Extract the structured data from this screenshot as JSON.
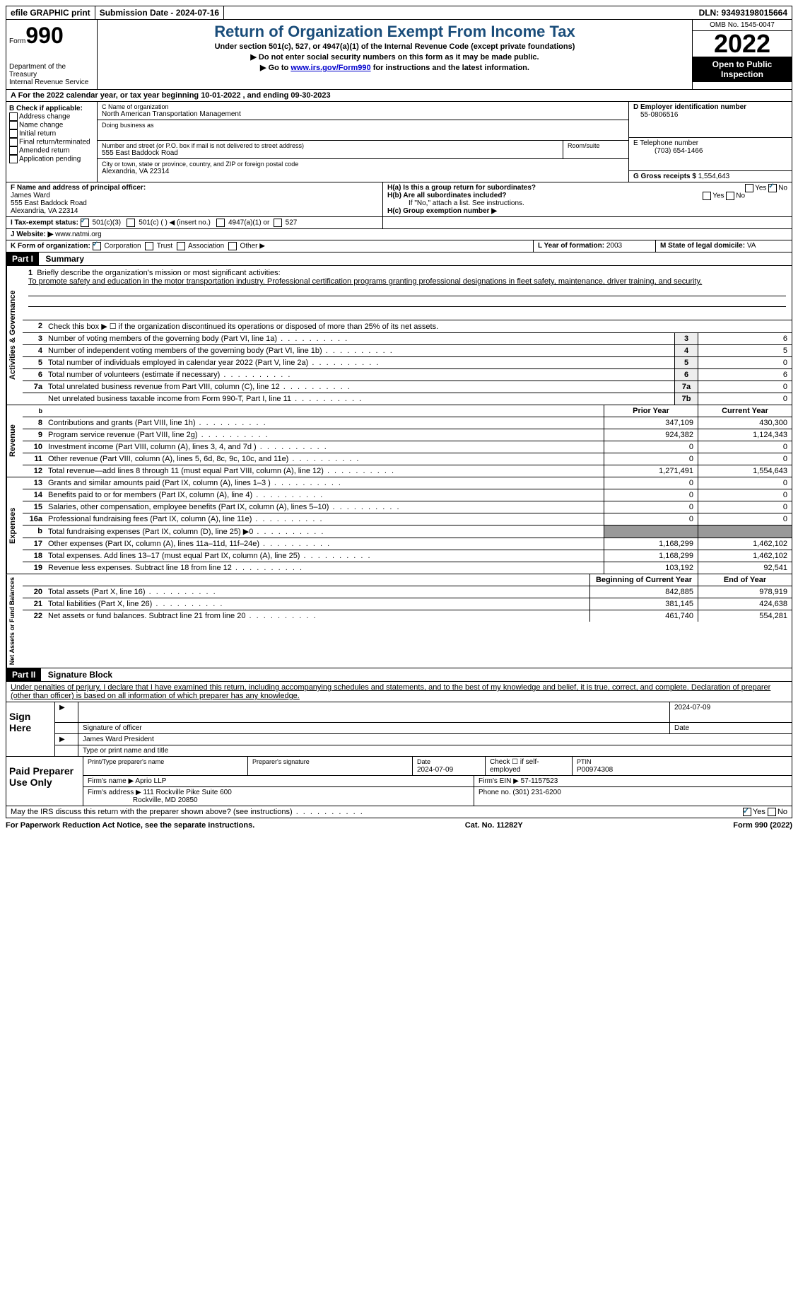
{
  "topbar": {
    "efile": "efile GRAPHIC print",
    "submission": "Submission Date - 2024-07-16",
    "dln": "DLN: 93493198015664"
  },
  "header": {
    "form_word": "Form",
    "form_num": "990",
    "dept": "Department of the Treasury",
    "irs": "Internal Revenue Service",
    "title": "Return of Organization Exempt From Income Tax",
    "sub1": "Under section 501(c), 527, or 4947(a)(1) of the Internal Revenue Code (except private foundations)",
    "sub2": "▶ Do not enter social security numbers on this form as it may be made public.",
    "sub3_pre": "▶ Go to ",
    "sub3_link": "www.irs.gov/Form990",
    "sub3_post": " for instructions and the latest information.",
    "omb": "OMB No. 1545-0047",
    "year": "2022",
    "inspection": "Open to Public Inspection"
  },
  "calyear": "A For the 2022 calendar year, or tax year beginning 10-01-2022    , and ending 09-30-2023",
  "sectionB": {
    "label": "B Check if applicable:",
    "items": [
      "Address change",
      "Name change",
      "Initial return",
      "Final return/terminated",
      "Amended return",
      "Application pending"
    ]
  },
  "sectionC": {
    "name_label": "C Name of organization",
    "name": "North American Transportation Management",
    "dba_label": "Doing business as",
    "addr_label": "Number and street (or P.O. box if mail is not delivered to street address)",
    "room_label": "Room/suite",
    "addr": "555 East Baddock Road",
    "city_label": "City or town, state or province, country, and ZIP or foreign postal code",
    "city": "Alexandria, VA  22314"
  },
  "sectionD": {
    "ein_label": "D Employer identification number",
    "ein": "55-0806516",
    "phone_label": "E Telephone number",
    "phone": "(703) 654-1466",
    "gross_label": "G Gross receipts $",
    "gross": "1,554,643"
  },
  "sectionF": {
    "label": "F  Name and address of principal officer:",
    "name": "James Ward",
    "addr1": "555 East Baddock Road",
    "addr2": "Alexandria, VA  22314"
  },
  "sectionH": {
    "ha": "H(a)  Is this a group return for subordinates?",
    "hb": "H(b)  Are all subordinates included?",
    "hb_note": "If \"No,\" attach a list. See instructions.",
    "hc": "H(c)  Group exemption number ▶",
    "yes": "Yes",
    "no": "No"
  },
  "taxexempt": {
    "label": "I   Tax-exempt status:",
    "opt1": "501(c)(3)",
    "opt2": "501(c) (  ) ◀ (insert no.)",
    "opt3": "4947(a)(1) or",
    "opt4": "527"
  },
  "website": {
    "label": "J   Website: ▶",
    "url": "www.natmi.org"
  },
  "formorg": {
    "label": "K Form of organization:",
    "opts": [
      "Corporation",
      "Trust",
      "Association",
      "Other ▶"
    ],
    "year_label": "L Year of formation:",
    "year": "2003",
    "state_label": "M State of legal domicile:",
    "state": "VA"
  },
  "part1": {
    "label": "Part I",
    "title": "Summary"
  },
  "mission": {
    "num": "1",
    "label": "Briefly describe the organization's mission or most significant activities:",
    "text": "To promote safety and education in the motor transportation industry. Professional certification programs granting professional designations in fleet safety, maintenance, driver training, and security."
  },
  "line2": {
    "num": "2",
    "text": "Check this box ▶ ☐ if the organization discontinued its operations or disposed of more than 25% of its net assets."
  },
  "lines_ag": [
    {
      "num": "3",
      "text": "Number of voting members of the governing body (Part VI, line 1a)",
      "box": "3",
      "val": "6"
    },
    {
      "num": "4",
      "text": "Number of independent voting members of the governing body (Part VI, line 1b)",
      "box": "4",
      "val": "5"
    },
    {
      "num": "5",
      "text": "Total number of individuals employed in calendar year 2022 (Part V, line 2a)",
      "box": "5",
      "val": "0"
    },
    {
      "num": "6",
      "text": "Total number of volunteers (estimate if necessary)",
      "box": "6",
      "val": "6"
    },
    {
      "num": "7a",
      "text": "Total unrelated business revenue from Part VIII, column (C), line 12",
      "box": "7a",
      "val": "0"
    },
    {
      "num": "",
      "text": "Net unrelated business taxable income from Form 990-T, Part I, line 11",
      "box": "7b",
      "val": "0"
    }
  ],
  "col_headers": {
    "prior": "Prior Year",
    "current": "Current Year",
    "begin": "Beginning of Current Year",
    "end": "End of Year"
  },
  "revenue": [
    {
      "num": "8",
      "text": "Contributions and grants (Part VIII, line 1h)",
      "prior": "347,109",
      "curr": "430,300"
    },
    {
      "num": "9",
      "text": "Program service revenue (Part VIII, line 2g)",
      "prior": "924,382",
      "curr": "1,124,343"
    },
    {
      "num": "10",
      "text": "Investment income (Part VIII, column (A), lines 3, 4, and 7d )",
      "prior": "0",
      "curr": "0"
    },
    {
      "num": "11",
      "text": "Other revenue (Part VIII, column (A), lines 5, 6d, 8c, 9c, 10c, and 11e)",
      "prior": "0",
      "curr": "0"
    },
    {
      "num": "12",
      "text": "Total revenue—add lines 8 through 11 (must equal Part VIII, column (A), line 12)",
      "prior": "1,271,491",
      "curr": "1,554,643"
    }
  ],
  "expenses": [
    {
      "num": "13",
      "text": "Grants and similar amounts paid (Part IX, column (A), lines 1–3 )",
      "prior": "0",
      "curr": "0"
    },
    {
      "num": "14",
      "text": "Benefits paid to or for members (Part IX, column (A), line 4)",
      "prior": "0",
      "curr": "0"
    },
    {
      "num": "15",
      "text": "Salaries, other compensation, employee benefits (Part IX, column (A), lines 5–10)",
      "prior": "0",
      "curr": "0"
    },
    {
      "num": "16a",
      "text": "Professional fundraising fees (Part IX, column (A), line 11e)",
      "prior": "0",
      "curr": "0"
    },
    {
      "num": "b",
      "text": "Total fundraising expenses (Part IX, column (D), line 25) ▶0",
      "prior": "",
      "curr": "",
      "shaded": true
    },
    {
      "num": "17",
      "text": "Other expenses (Part IX, column (A), lines 11a–11d, 11f–24e)",
      "prior": "1,168,299",
      "curr": "1,462,102"
    },
    {
      "num": "18",
      "text": "Total expenses. Add lines 13–17 (must equal Part IX, column (A), line 25)",
      "prior": "1,168,299",
      "curr": "1,462,102"
    },
    {
      "num": "19",
      "text": "Revenue less expenses. Subtract line 18 from line 12",
      "prior": "103,192",
      "curr": "92,541"
    }
  ],
  "netassets": [
    {
      "num": "20",
      "text": "Total assets (Part X, line 16)",
      "prior": "842,885",
      "curr": "978,919"
    },
    {
      "num": "21",
      "text": "Total liabilities (Part X, line 26)",
      "prior": "381,145",
      "curr": "424,638"
    },
    {
      "num": "22",
      "text": "Net assets or fund balances. Subtract line 21 from line 20",
      "prior": "461,740",
      "curr": "554,281"
    }
  ],
  "part2": {
    "label": "Part II",
    "title": "Signature Block",
    "declaration": "Under penalties of perjury, I declare that I have examined this return, including accompanying schedules and statements, and to the best of my knowledge and belief, it is true, correct, and complete. Declaration of preparer (other than officer) is based on all information of which preparer has any knowledge."
  },
  "sign": {
    "label": "Sign Here",
    "date": "2024-07-09",
    "sig_label": "Signature of officer",
    "date_label": "Date",
    "name": "James Ward  President",
    "name_label": "Type or print name and title"
  },
  "preparer": {
    "label": "Paid Preparer Use Only",
    "print_label": "Print/Type preparer's name",
    "sig_label": "Preparer's signature",
    "date_label": "Date",
    "date": "2024-07-09",
    "check_label": "Check ☐ if self-employed",
    "ptin_label": "PTIN",
    "ptin": "P00974308",
    "firm_label": "Firm's name    ▶",
    "firm": "Aprio LLP",
    "ein_label": "Firm's EIN ▶",
    "ein": "57-1157523",
    "addr_label": "Firm's address ▶",
    "addr1": "111 Rockville Pike Suite 600",
    "addr2": "Rockville, MD  20850",
    "phone_label": "Phone no.",
    "phone": "(301) 231-6200"
  },
  "discuss": "May the IRS discuss this return with the preparer shown above? (see instructions)",
  "footer": {
    "left": "For Paperwork Reduction Act Notice, see the separate instructions.",
    "center": "Cat. No. 11282Y",
    "right": "Form 990 (2022)"
  },
  "vert_labels": {
    "ag": "Activities & Governance",
    "rev": "Revenue",
    "exp": "Expenses",
    "net": "Net Assets or Fund Balances"
  }
}
